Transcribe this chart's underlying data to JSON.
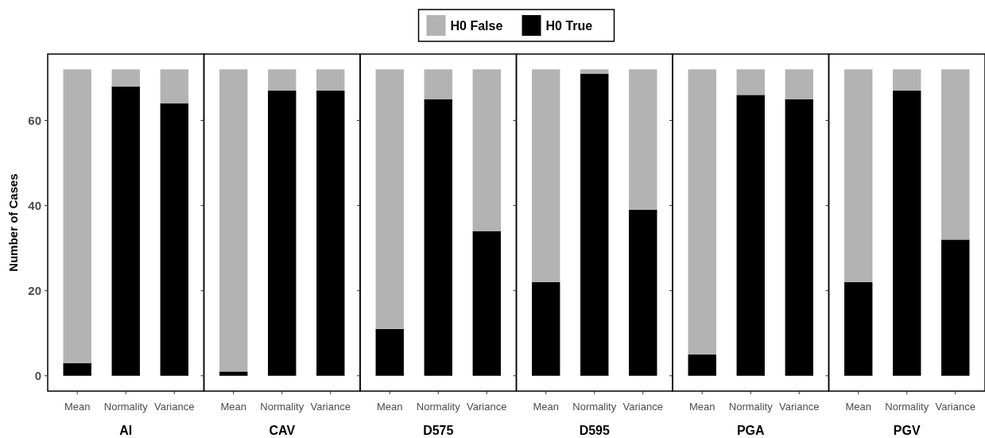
{
  "chart_data": [
    {
      "type": "bar",
      "stacked": true,
      "xlabel": "AI",
      "ylabel": "Number of Cases",
      "categories": [
        "Mean",
        "Normality",
        "Variance"
      ],
      "ylim": [
        -3.6,
        75.6
      ],
      "yticks": [
        0,
        20,
        40,
        60
      ],
      "legend": "top",
      "series": [
        {
          "name": "H0 True",
          "color": "#000000",
          "values": [
            3,
            68,
            64
          ]
        },
        {
          "name": "H0 False",
          "color": "#b3b3b3",
          "values": [
            69,
            4,
            8
          ]
        }
      ]
    },
    {
      "type": "bar",
      "stacked": true,
      "xlabel": "CAV",
      "categories": [
        "Mean",
        "Normality",
        "Variance"
      ],
      "ylim": [
        -3.6,
        75.6
      ],
      "yticks": [
        0,
        20,
        40,
        60
      ],
      "tick_labels": "x",
      "series": [
        {
          "color": "#000000",
          "values": [
            1,
            67,
            67
          ]
        },
        {
          "color": "#b3b3b3",
          "values": [
            71,
            5,
            5
          ]
        }
      ]
    },
    {
      "type": "bar",
      "stacked": true,
      "xlabel": "D575",
      "categories": [
        "Mean",
        "Normality",
        "Variance"
      ],
      "ylim": [
        -3.6,
        75.6
      ],
      "yticks": [
        0,
        20,
        40,
        60
      ],
      "tick_labels": "x",
      "series": [
        {
          "color": "#000000",
          "values": [
            11,
            65,
            34
          ]
        },
        {
          "color": "#b3b3b3",
          "values": [
            61,
            7,
            38
          ]
        }
      ]
    },
    {
      "type": "bar",
      "stacked": true,
      "xlabel": "D595",
      "categories": [
        "Mean",
        "Normality",
        "Variance"
      ],
      "ylim": [
        -3.6,
        75.6
      ],
      "yticks": [
        0,
        20,
        40,
        60
      ],
      "tick_labels": "x",
      "series": [
        {
          "color": "#000000",
          "values": [
            22,
            71,
            39
          ]
        },
        {
          "color": "#b3b3b3",
          "values": [
            50,
            1,
            33
          ]
        }
      ]
    },
    {
      "type": "bar",
      "stacked": true,
      "xlabel": "PGA",
      "categories": [
        "Mean",
        "Normality",
        "Variance"
      ],
      "ylim": [
        -3.6,
        75.6
      ],
      "yticks": [
        0,
        20,
        40,
        60
      ],
      "tick_labels": "x",
      "series": [
        {
          "color": "#000000",
          "values": [
            5,
            66,
            65
          ]
        },
        {
          "color": "#b3b3b3",
          "values": [
            67,
            6,
            7
          ]
        }
      ]
    },
    {
      "type": "bar",
      "stacked": true,
      "xlabel": "PGV",
      "categories": [
        "Mean",
        "Normality",
        "Variance"
      ],
      "ylim": [
        -3.6,
        75.6
      ],
      "yticks": [
        0,
        20,
        40,
        60
      ],
      "tick_labels": "x",
      "series": [
        {
          "color": "#000000",
          "values": [
            22,
            67,
            32
          ]
        },
        {
          "color": "#b3b3b3",
          "values": [
            50,
            5,
            40
          ]
        }
      ]
    }
  ]
}
